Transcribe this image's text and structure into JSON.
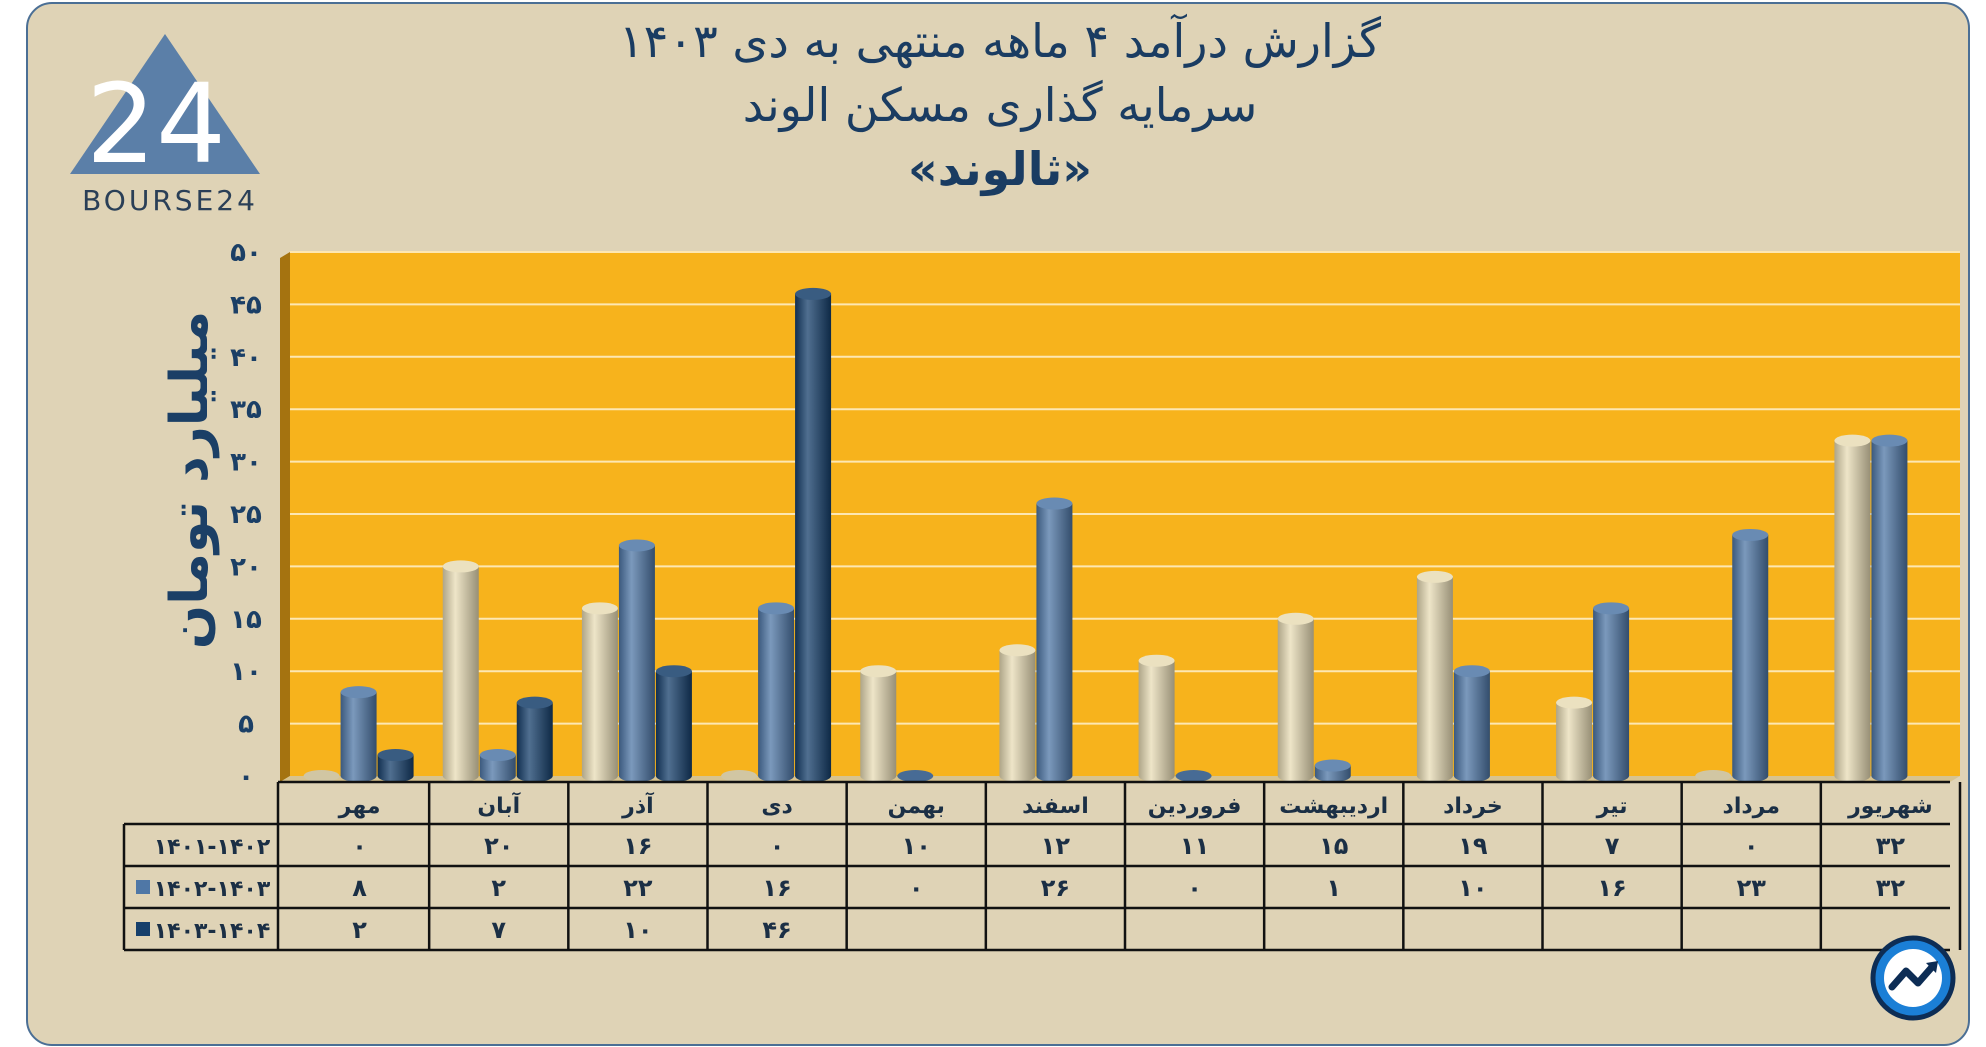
{
  "header": {
    "title_line1": "گزارش  درآمد ۴ ماهه منتهی به دی ۱۴۰۳",
    "title_line2": "سرمایه گذاری مسکن الوند",
    "title_line3": "«ثالوند»"
  },
  "logo": {
    "text": "BOURSE24",
    "mark": "24"
  },
  "chart_data": {
    "type": "bar",
    "title": "گزارش  درآمد ۴ ماهه منتهی به دی ۱۴۰۳ سرمایه گذاری مسکن الوند «ثالوند»",
    "ylabel": "میلیارد تومان",
    "xlabel": "",
    "ylim": [
      0,
      50
    ],
    "yticks": [
      0,
      5,
      10,
      15,
      20,
      25,
      30,
      35,
      40,
      45,
      50
    ],
    "ytick_labels": [
      "۰",
      "۵",
      "۱۰",
      "۱۵",
      "۲۰",
      "۲۵",
      "۳۰",
      "۳۵",
      "۴۰",
      "۴۵",
      "۵۰"
    ],
    "grid": true,
    "legend": "data-table-left",
    "categories": [
      "مهر",
      "آبان",
      "آذر",
      "دی",
      "بهمن",
      "اسفند",
      "فروردین",
      "اردیبهشت",
      "خرداد",
      "تیر",
      "مرداد",
      "شهریور"
    ],
    "series": [
      {
        "name": "۱۴۰۱-۱۴۰۲",
        "color": "#e8dcb5",
        "values": [
          0,
          20,
          16,
          0,
          10,
          12,
          11,
          15,
          19,
          7,
          0,
          32
        ],
        "labels": [
          "۰",
          "۲۰",
          "۱۶",
          "۰",
          "۱۰",
          "۱۲",
          "۱۱",
          "۱۵",
          "۱۹",
          "۷",
          "۰",
          "۳۲"
        ]
      },
      {
        "name": "۱۴۰۲-۱۴۰۳",
        "color": "#4f77a6",
        "values": [
          8,
          2,
          22,
          16,
          0,
          26,
          0,
          1,
          10,
          16,
          23,
          32
        ],
        "labels": [
          "۸",
          "۲",
          "۲۲",
          "۱۶",
          "۰",
          "۲۶",
          "۰",
          "۱",
          "۱۰",
          "۱۶",
          "۲۳",
          "۳۲"
        ]
      },
      {
        "name": "۱۴۰۳-۱۴۰۴",
        "color": "#163f6b",
        "values": [
          2,
          7,
          10,
          46,
          null,
          null,
          null,
          null,
          null,
          null,
          null,
          null
        ],
        "labels": [
          "۲",
          "۷",
          "۱۰",
          "۴۶",
          "",
          "",
          "",
          "",
          "",
          "",
          "",
          ""
        ]
      }
    ]
  }
}
